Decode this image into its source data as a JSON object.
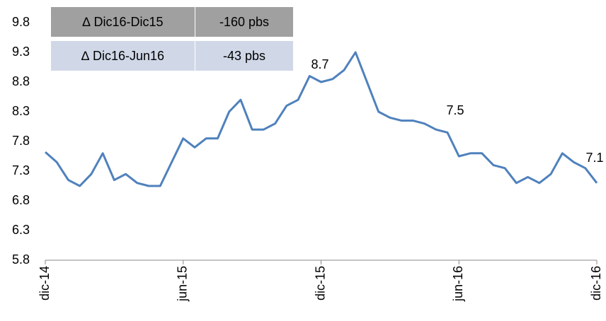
{
  "chart_data": {
    "type": "line",
    "x": [
      0,
      0.5,
      1,
      1.5,
      2,
      2.5,
      3,
      3.5,
      4,
      4.5,
      5,
      5.5,
      6,
      6.5,
      7,
      7.5,
      8,
      8.5,
      9,
      9.5,
      10,
      10.5,
      11,
      11.5,
      12,
      12.5,
      13,
      13.5,
      14,
      14.5,
      15,
      15.5,
      16,
      16.5,
      17,
      17.5,
      18,
      18.5,
      19,
      19.5,
      20,
      20.5,
      21,
      21.5,
      22,
      22.5,
      23,
      23.5,
      24
    ],
    "series": [
      {
        "color": "#4f81bd",
        "values": [
          7.62,
          7.45,
          7.15,
          7.05,
          7.25,
          7.6,
          7.15,
          7.25,
          7.1,
          7.05,
          7.05,
          7.45,
          7.85,
          7.7,
          7.85,
          7.85,
          8.3,
          8.5,
          8.0,
          8.0,
          8.1,
          8.4,
          8.5,
          8.9,
          8.8,
          8.85,
          9.0,
          9.3,
          8.8,
          8.3,
          8.2,
          8.15,
          8.15,
          8.1,
          8.0,
          7.95,
          7.55,
          7.6,
          7.6,
          7.4,
          7.35,
          7.1,
          7.2,
          7.1,
          7.25,
          7.6,
          7.45,
          7.35,
          7.1
        ]
      }
    ],
    "xlim": [
      0,
      24
    ],
    "xticks": [
      {
        "value": 0,
        "label": "dic-14"
      },
      {
        "value": 6,
        "label": "jun-15"
      },
      {
        "value": 12,
        "label": "dic-15"
      },
      {
        "value": 18,
        "label": "jun-16"
      },
      {
        "value": 24,
        "label": "dic-16"
      }
    ],
    "ylim": [
      5.8,
      9.8
    ],
    "yticks": [
      5.8,
      6.3,
      6.8,
      7.3,
      7.8,
      8.3,
      8.8,
      9.3,
      9.8
    ],
    "annotations": [
      "8.7",
      "7.5",
      "7.1"
    ],
    "table": {
      "rows": [
        [
          "∆ Dic16-Dic15",
          "-160 pbs"
        ],
        [
          "∆ Dic16-Jun16",
          "-43 pbs"
        ]
      ]
    }
  }
}
